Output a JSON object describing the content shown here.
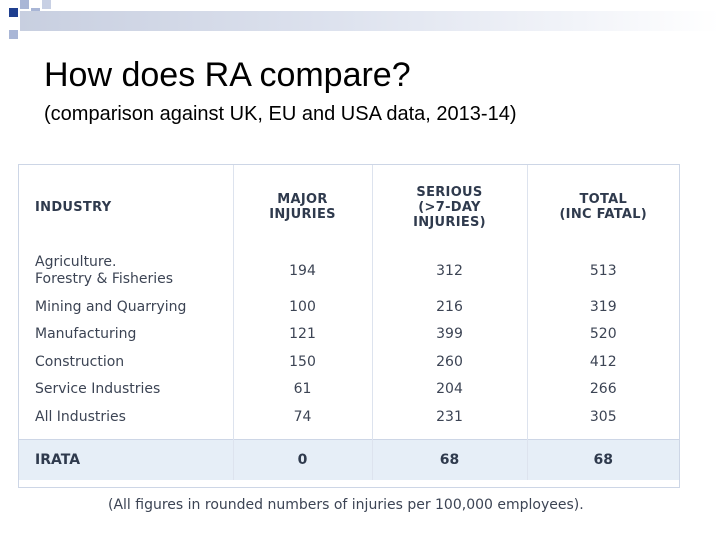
{
  "slide": {
    "title": "How does RA compare?",
    "subtitle": "(comparison against UK, EU and USA data, 2013-14)"
  },
  "table": {
    "headers": [
      "INDUSTRY",
      "MAJOR\nINJURIES",
      "SERIOUS\n(>7-DAY\nINJURIES)",
      "TOTAL\n(INC FATAL)"
    ],
    "rows": [
      [
        "Agriculture.\nForestry & Fisheries",
        "194",
        "312",
        "513"
      ],
      [
        "Mining and Quarrying",
        "100",
        "216",
        "319"
      ],
      [
        "Manufacturing",
        "121",
        "399",
        "520"
      ],
      [
        "Construction",
        "150",
        "260",
        "412"
      ],
      [
        "Service Industries",
        "61",
        "204",
        "266"
      ],
      [
        "All Industries",
        "74",
        "231",
        "305"
      ]
    ],
    "highlight_row": [
      "IRATA",
      "0",
      "68",
      "68"
    ],
    "footnote": "(All figures in rounded numbers of injuries per 100,000 employees)."
  },
  "colors": {
    "header_text": "#2f3a4d",
    "body_text": "#3c4454",
    "highlight_bg": "#e6eef7",
    "decor_dark": "#1f3f8f",
    "decor_light": "#a9b6d6"
  }
}
